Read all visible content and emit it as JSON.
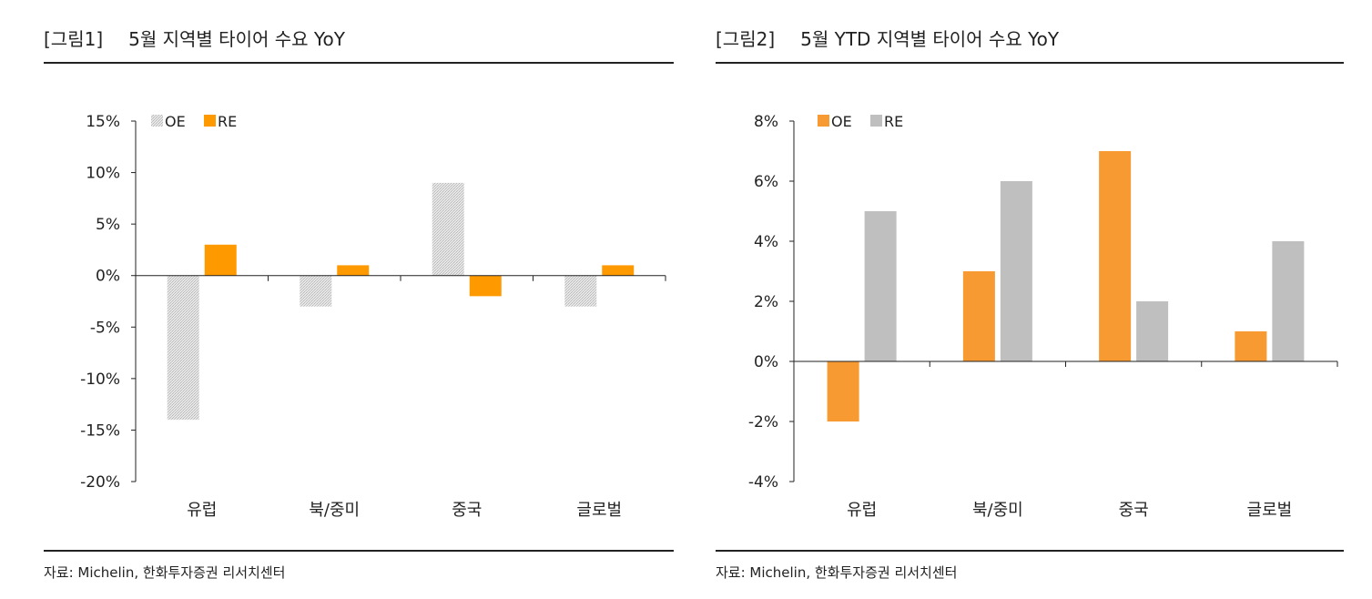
{
  "chart_data": [
    {
      "type": "bar",
      "figure_label": "[그림1]",
      "title": "5월 지역별 타이어 수요 YoY",
      "categories": [
        "유럽",
        "북/중미",
        "중국",
        "글로벌"
      ],
      "series": [
        {
          "name": "OE",
          "values": [
            -14,
            -3,
            9,
            -3
          ],
          "color": "#cccccc",
          "pattern": "dotted"
        },
        {
          "name": "RE",
          "values": [
            3,
            1,
            -2,
            1
          ],
          "color": "#ff9900"
        }
      ],
      "ylim": [
        -20,
        15
      ],
      "yticks": [
        15,
        10,
        5,
        0,
        -5,
        -10,
        -15,
        -20
      ],
      "ytick_labels": [
        "15%",
        "10%",
        "5%",
        "0%",
        "-5%",
        "-10%",
        "-15%",
        "-20%"
      ],
      "legend": "top-left",
      "grid": false,
      "source": "자료: Michelin, 한화투자증권 리서치센터"
    },
    {
      "type": "bar",
      "figure_label": "[그림2]",
      "title": "5월 YTD 지역별 타이어 수요 YoY",
      "categories": [
        "유럽",
        "북/중미",
        "중국",
        "글로벌"
      ],
      "series": [
        {
          "name": "OE",
          "values": [
            -2,
            3,
            7,
            1
          ],
          "color": "#f79a32"
        },
        {
          "name": "RE",
          "values": [
            5,
            6,
            2,
            4
          ],
          "color": "#bfbfbf"
        }
      ],
      "ylim": [
        -4,
        8
      ],
      "yticks": [
        8,
        6,
        4,
        2,
        0,
        -2,
        -4
      ],
      "ytick_labels": [
        "8%",
        "6%",
        "4%",
        "2%",
        "0%",
        "-2%",
        "-4%"
      ],
      "legend": "top-left",
      "grid": false,
      "source": "자료: Michelin, 한화투자증권 리서치센터"
    }
  ]
}
